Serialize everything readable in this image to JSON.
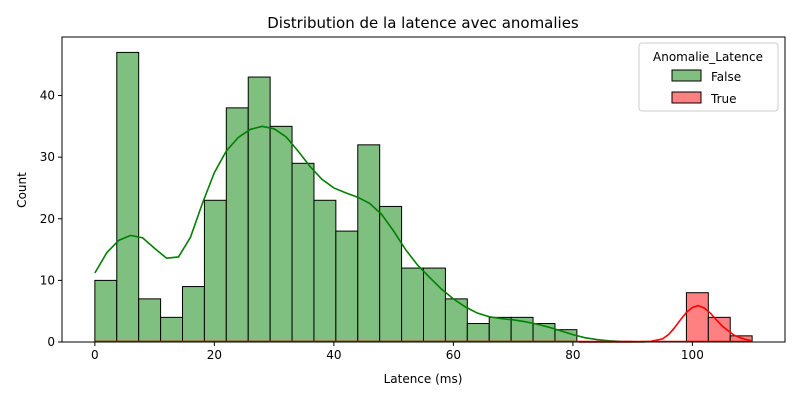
{
  "chart_data": {
    "type": "bar",
    "title": "Distribution de la latence avec anomalies",
    "xlabel": "Latence (ms)",
    "ylabel": "Count",
    "xlim": [
      -5.5,
      115.5
    ],
    "ylim": [
      0,
      49.5
    ],
    "xticks": [
      0,
      20,
      40,
      60,
      80,
      100
    ],
    "yticks": [
      0,
      10,
      20,
      30,
      40
    ],
    "grid": false,
    "legend": {
      "title": "Anomalie_Latence",
      "placement": "top-right"
    },
    "bin_width": 3.667,
    "series": [
      {
        "name": "False",
        "color": "#7fbf7f",
        "kde_color": "#008000",
        "bin_starts": [
          0,
          3.667,
          7.333,
          11.0,
          14.667,
          18.333,
          22.0,
          25.667,
          29.333,
          33.0,
          36.667,
          40.333,
          44.0,
          47.667,
          51.333,
          55.0,
          58.667,
          62.333,
          66.0,
          69.667,
          73.333,
          77.0
        ],
        "counts": [
          10,
          47,
          7,
          4,
          9,
          23,
          38,
          43,
          35,
          29,
          23,
          18,
          32,
          22,
          12,
          12,
          7,
          3,
          4,
          4,
          3,
          2
        ],
        "kde": [
          [
            0,
            11.2
          ],
          [
            2,
            14.5
          ],
          [
            4,
            16.5
          ],
          [
            6,
            17.3
          ],
          [
            8,
            16.9
          ],
          [
            10,
            15.2
          ],
          [
            12,
            13.6
          ],
          [
            14,
            13.8
          ],
          [
            16,
            17.0
          ],
          [
            18,
            22.5
          ],
          [
            20,
            27.5
          ],
          [
            22,
            31.0
          ],
          [
            24,
            33.2
          ],
          [
            26,
            34.5
          ],
          [
            28,
            35.0
          ],
          [
            30,
            34.6
          ],
          [
            32,
            33.3
          ],
          [
            34,
            31.0
          ],
          [
            36,
            28.5
          ],
          [
            38,
            26.4
          ],
          [
            40,
            25.0
          ],
          [
            42,
            24.2
          ],
          [
            44,
            23.5
          ],
          [
            46,
            22.5
          ],
          [
            48,
            20.7
          ],
          [
            50,
            18.0
          ],
          [
            52,
            15.0
          ],
          [
            54,
            12.5
          ],
          [
            56,
            10.5
          ],
          [
            58,
            8.6
          ],
          [
            60,
            7.0
          ],
          [
            62,
            5.7
          ],
          [
            64,
            4.7
          ],
          [
            66,
            4.1
          ],
          [
            68,
            3.8
          ],
          [
            70,
            3.6
          ],
          [
            72,
            3.3
          ],
          [
            74,
            2.9
          ],
          [
            76,
            2.4
          ],
          [
            78,
            1.8
          ],
          [
            80,
            1.2
          ],
          [
            82,
            0.7
          ],
          [
            84,
            0.4
          ],
          [
            86,
            0.2
          ],
          [
            88,
            0.1
          ],
          [
            90,
            0.05
          ],
          [
            92,
            0.0
          ]
        ]
      },
      {
        "name": "True",
        "color": "#ff8080",
        "kde_color": "#ff0000",
        "bin_starts": [
          99.0,
          102.667,
          106.333
        ],
        "counts": [
          8,
          4,
          1
        ],
        "kde": [
          [
            81,
            0.0
          ],
          [
            90,
            0.0
          ],
          [
            93,
            0.1
          ],
          [
            95,
            0.5
          ],
          [
            96,
            1.2
          ],
          [
            97,
            2.3
          ],
          [
            98,
            3.6
          ],
          [
            99,
            4.8
          ],
          [
            100,
            5.6
          ],
          [
            101,
            5.9
          ],
          [
            102,
            5.5
          ],
          [
            103,
            4.7
          ],
          [
            104,
            3.6
          ],
          [
            105,
            2.6
          ],
          [
            106,
            1.8
          ],
          [
            107,
            1.1
          ],
          [
            108,
            0.7
          ],
          [
            109,
            0.4
          ],
          [
            110,
            0.2
          ]
        ]
      }
    ]
  }
}
